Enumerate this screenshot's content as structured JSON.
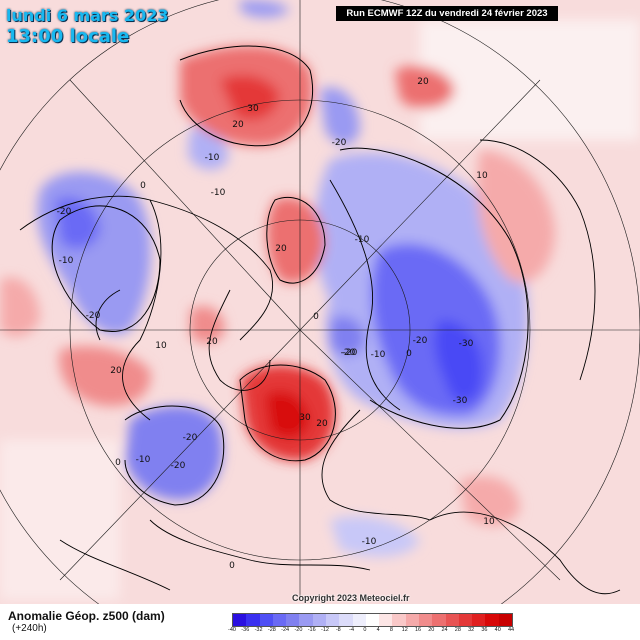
{
  "header": {
    "date": "lundi 6 mars 2023",
    "time": "13:00 locale",
    "run": "Run ECMWF 12Z du vendredi 24 février 2023"
  },
  "footer": {
    "variable": "Anomalie Géop. z500 (dam)",
    "lead": "(+240h)",
    "copyright": "Copyright 2023 Meteociel.fr"
  },
  "legend": {
    "ticks": [
      "-40",
      "-36",
      "-32",
      "-28",
      "-24",
      "-20",
      "-16",
      "-12",
      "-8",
      "-4",
      "0",
      "4",
      "8",
      "12",
      "16",
      "20",
      "24",
      "28",
      "32",
      "36",
      "40",
      "44"
    ],
    "colors": [
      "#2a10e0",
      "#3a30f0",
      "#5050f5",
      "#6a6af5",
      "#8080f0",
      "#9a9af2",
      "#b0b0f5",
      "#c8c8f8",
      "#dcdcfa",
      "#eeeefc",
      "#ffffff",
      "#fde6e6",
      "#f9c8c8",
      "#f5aaaa",
      "#f08c8c",
      "#ec7070",
      "#e85454",
      "#e43838",
      "#e02020",
      "#d80808",
      "#c80000"
    ]
  },
  "contour_labels": [
    "-20",
    "-10",
    "-20",
    "-10",
    "30",
    "20",
    "20",
    "-20",
    "-10",
    "-10",
    "10",
    "0",
    "-20",
    "-10",
    "20",
    "0",
    "10",
    "-20",
    "20",
    "-30",
    "-30",
    "-20",
    "30",
    "20",
    "-20",
    "-10",
    "0",
    "-20",
    "20",
    "10",
    "0",
    "-10",
    "0"
  ]
}
